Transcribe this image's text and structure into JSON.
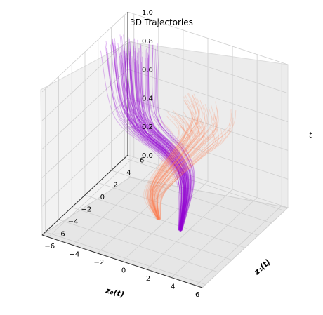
{
  "chart_data": {
    "type": "line",
    "projection": "3d",
    "title": "3D Trajectories",
    "xlabel": "z₀(t)",
    "ylabel": "z₁(t)",
    "zlabel": "t",
    "x_ticks": [
      "−6",
      "−4",
      "−2",
      "0",
      "2",
      "4",
      "6"
    ],
    "y_ticks": [
      "−6",
      "−4",
      "−2",
      "0",
      "2",
      "4",
      "6"
    ],
    "z_ticks": [
      "0.0",
      "0.2",
      "0.4",
      "0.6",
      "0.8",
      "1.0"
    ],
    "xlim": [
      -6.5,
      6.5
    ],
    "ylim": [
      -6.5,
      6.5
    ],
    "zlim": [
      0,
      1
    ],
    "grid": true,
    "series": [
      {
        "color": "#9400d3",
        "alpha": 0.25,
        "description_points_t": [
          0,
          0.25,
          0.5,
          0.75,
          1.0
        ],
        "x": [
          1.5,
          1.0,
          0.6,
          -1.5,
          -4.0
        ],
        "y": [
          -0.5,
          1.2,
          -0.2,
          -1.5,
          2.0
        ]
      },
      {
        "color": "#ff7f50",
        "alpha": 0.2,
        "description_points_t": [
          0,
          0.25,
          0.5,
          0.75,
          1.0
        ],
        "x": [
          -0.5,
          -0.2,
          1.5,
          3.5,
          4.5
        ],
        "y": [
          0.0,
          -1.0,
          0.8,
          -0.5,
          -3.0
        ]
      }
    ]
  }
}
